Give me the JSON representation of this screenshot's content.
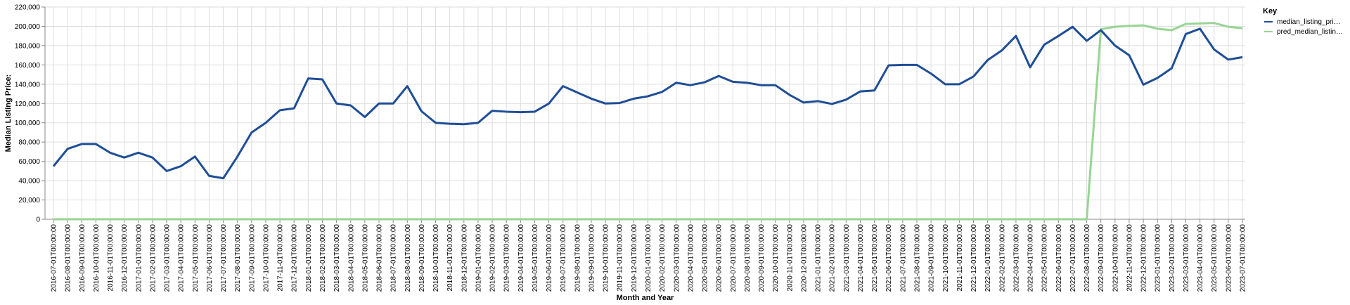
{
  "chart_data": {
    "type": "line",
    "xlabel": "Month and Year",
    "ylabel": "Median Listing Price:",
    "ylim": [
      0,
      220000
    ],
    "yticks": [
      "0",
      "20,000",
      "40,000",
      "60,000",
      "80,000",
      "100,000",
      "120,000",
      "140,000",
      "160,000",
      "180,000",
      "200,000",
      "220,000"
    ],
    "grid": true,
    "legend_title": "Key",
    "legend_position": "top-right",
    "x": [
      "2016-07-01T00:00:00",
      "2016-08-01T00:00:00",
      "2016-09-01T00:00:00",
      "2016-10-01T00:00:00",
      "2016-11-01T00:00:00",
      "2016-12-01T00:00:00",
      "2017-01-01T00:00:00",
      "2017-02-01T00:00:00",
      "2017-03-01T00:00:00",
      "2017-04-01T00:00:00",
      "2017-05-01T00:00:00",
      "2017-06-01T00:00:00",
      "2017-07-01T00:00:00",
      "2017-08-01T00:00:00",
      "2017-09-01T00:00:00",
      "2017-10-01T00:00:00",
      "2017-11-01T00:00:00",
      "2017-12-01T00:00:00",
      "2018-01-01T00:00:00",
      "2018-02-01T00:00:00",
      "2018-03-01T00:00:00",
      "2018-04-01T00:00:00",
      "2018-05-01T00:00:00",
      "2018-06-01T00:00:00",
      "2018-07-01T00:00:00",
      "2018-08-01T00:00:00",
      "2018-09-01T00:00:00",
      "2018-10-01T00:00:00",
      "2018-11-01T00:00:00",
      "2018-12-01T00:00:00",
      "2019-01-01T00:00:00",
      "2019-02-01T00:00:00",
      "2019-03-01T00:00:00",
      "2019-04-01T00:00:00",
      "2019-05-01T00:00:00",
      "2019-06-01T00:00:00",
      "2019-07-01T00:00:00",
      "2019-08-01T00:00:00",
      "2019-09-01T00:00:00",
      "2019-10-01T00:00:00",
      "2019-11-01T00:00:00",
      "2019-12-01T00:00:00",
      "2020-01-01T00:00:00",
      "2020-02-01T00:00:00",
      "2020-03-01T00:00:00",
      "2020-04-01T00:00:00",
      "2020-05-01T00:00:00",
      "2020-06-01T00:00:00",
      "2020-07-01T00:00:00",
      "2020-08-01T00:00:00",
      "2020-09-01T00:00:00",
      "2020-10-01T00:00:00",
      "2020-11-01T00:00:00",
      "2020-12-01T00:00:00",
      "2021-01-01T00:00:00",
      "2021-02-01T00:00:00",
      "2021-03-01T00:00:00",
      "2021-04-01T00:00:00",
      "2021-05-01T00:00:00",
      "2021-06-01T00:00:00",
      "2021-07-01T00:00:00",
      "2021-08-01T00:00:00",
      "2021-09-01T00:00:00",
      "2021-10-01T00:00:00",
      "2021-11-01T00:00:00",
      "2021-12-01T00:00:00",
      "2022-01-01T00:00:00",
      "2022-02-01T00:00:00",
      "2022-03-01T00:00:00",
      "2022-04-01T00:00:00",
      "2022-05-01T00:00:00",
      "2022-06-01T00:00:00",
      "2022-07-01T00:00:00",
      "2022-08-01T00:00:00",
      "2022-09-01T00:00:00",
      "2022-10-01T00:00:00",
      "2022-11-01T00:00:00",
      "2022-12-01T00:00:00",
      "2023-01-01T00:00:00",
      "2023-02-01T00:00:00",
      "2023-03-01T00:00:00",
      "2023-04-01T00:00:00",
      "2023-05-01T00:00:00",
      "2023-06-01T00:00:00",
      "2023-07-01T00:00:00"
    ],
    "series": [
      {
        "name": "median_listing_pri…",
        "color": "#1f4e96",
        "values": [
          55000,
          73000,
          78000,
          78000,
          69000,
          64000,
          69000,
          64000,
          50000,
          55000,
          65000,
          45000,
          42500,
          65000,
          90000,
          100000,
          113000,
          115000,
          146000,
          145000,
          120000,
          118000,
          106000,
          120000,
          120000,
          138000,
          112000,
          100000,
          99000,
          98500,
          100000,
          112500,
          111500,
          111000,
          111500,
          120000,
          138000,
          131500,
          125000,
          120000,
          120500,
          125000,
          127500,
          132000,
          141500,
          139000,
          142000,
          148500,
          142500,
          141500,
          139000,
          139000,
          129000,
          121000,
          122500,
          119500,
          124000,
          132500,
          133500,
          159500,
          160000,
          160000,
          151000,
          140000,
          140000,
          148000,
          165000,
          175000,
          190000,
          157500,
          181000,
          190000,
          199500,
          185000,
          196000,
          180000,
          170000,
          139500,
          146500,
          156500,
          192000,
          197500,
          176000,
          165500,
          168000
        ]
      },
      {
        "name": "pred_median_listin…",
        "color": "#98d594",
        "values": [
          0,
          0,
          0,
          0,
          0,
          0,
          0,
          0,
          0,
          0,
          0,
          0,
          0,
          0,
          0,
          0,
          0,
          0,
          0,
          0,
          0,
          0,
          0,
          0,
          0,
          0,
          0,
          0,
          0,
          0,
          0,
          0,
          0,
          0,
          0,
          0,
          0,
          0,
          0,
          0,
          0,
          0,
          0,
          0,
          0,
          0,
          0,
          0,
          0,
          0,
          0,
          0,
          0,
          0,
          0,
          0,
          0,
          0,
          0,
          0,
          0,
          0,
          0,
          0,
          0,
          0,
          0,
          0,
          0,
          0,
          0,
          0,
          0,
          0,
          197000,
          199500,
          200500,
          201000,
          197500,
          196000,
          202500,
          203000,
          203500,
          199500,
          198000
        ]
      }
    ]
  }
}
